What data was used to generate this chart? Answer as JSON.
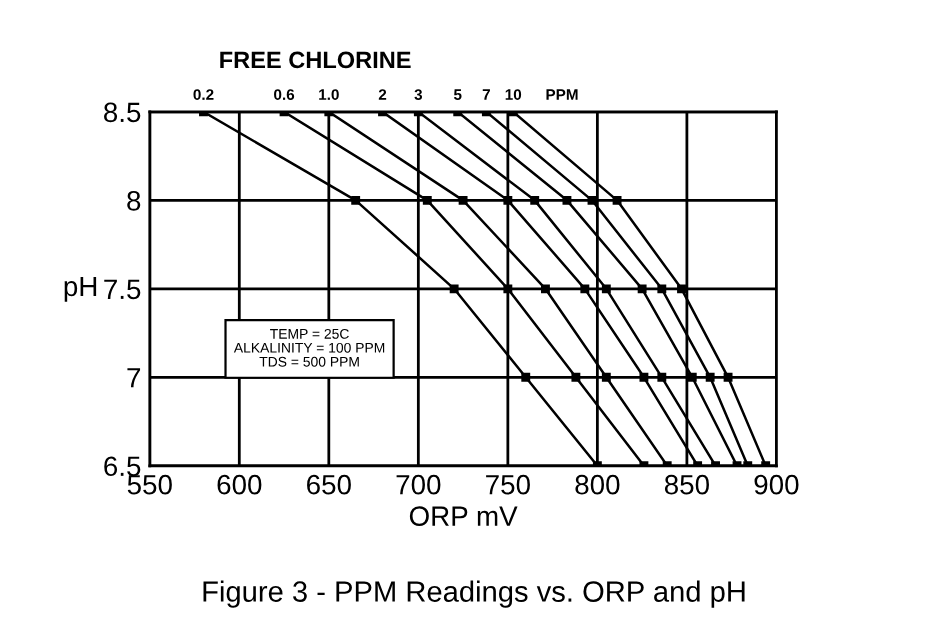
{
  "chart_data": {
    "type": "line",
    "title": "FREE CHLORINE",
    "xlabel": "ORP mV",
    "ylabel": "pH",
    "xlim": [
      550,
      900
    ],
    "xticks": [
      550,
      600,
      650,
      700,
      750,
      800,
      850,
      900
    ],
    "ylim": [
      6.5,
      8.5
    ],
    "yticks": [
      6.5,
      7,
      7.5,
      8,
      8.5
    ],
    "grid": true,
    "marker": "square",
    "line_style": "solid",
    "legend": false,
    "annotations": [
      "PPM",
      "TEMP = 25C",
      "ALKALINITY = 100 PPM",
      "TDS = 500 PPM",
      "Figure 3 - PPM Readings vs. ORP and pH"
    ],
    "series": [
      {
        "name": "0.2",
        "color": "#000000",
        "x": [
          580,
          665,
          720,
          760,
          800
        ],
        "values": [
          8.5,
          8,
          7.5,
          7,
          6.5
        ]
      },
      {
        "name": "0.6",
        "color": "#000000",
        "x": [
          625,
          705,
          750,
          788,
          826
        ],
        "values": [
          8.5,
          8,
          7.5,
          7,
          6.5
        ]
      },
      {
        "name": "1.0",
        "color": "#000000",
        "x": [
          650,
          725,
          771,
          805,
          839
        ],
        "values": [
          8.5,
          8,
          7.5,
          7,
          6.5
        ]
      },
      {
        "name": "2",
        "color": "#000000",
        "x": [
          680,
          750,
          793,
          826,
          856
        ],
        "values": [
          8.5,
          8,
          7.5,
          7,
          6.5
        ]
      },
      {
        "name": "3",
        "color": "#000000",
        "x": [
          700,
          765,
          805,
          836,
          866
        ],
        "values": [
          8.5,
          8,
          7.5,
          7,
          6.5
        ]
      },
      {
        "name": "5",
        "color": "#000000",
        "x": [
          722,
          783,
          825,
          853,
          878
        ],
        "values": [
          8.5,
          8,
          7.5,
          7,
          6.5
        ]
      },
      {
        "name": "7",
        "color": "#000000",
        "x": [
          738,
          797,
          836,
          863,
          884
        ],
        "values": [
          8.5,
          8,
          7.5,
          7,
          6.5
        ]
      },
      {
        "name": "10",
        "color": "#000000",
        "x": [
          753,
          811,
          847,
          873,
          894
        ],
        "values": [
          8.5,
          8,
          7.5,
          7,
          6.5
        ]
      }
    ]
  }
}
